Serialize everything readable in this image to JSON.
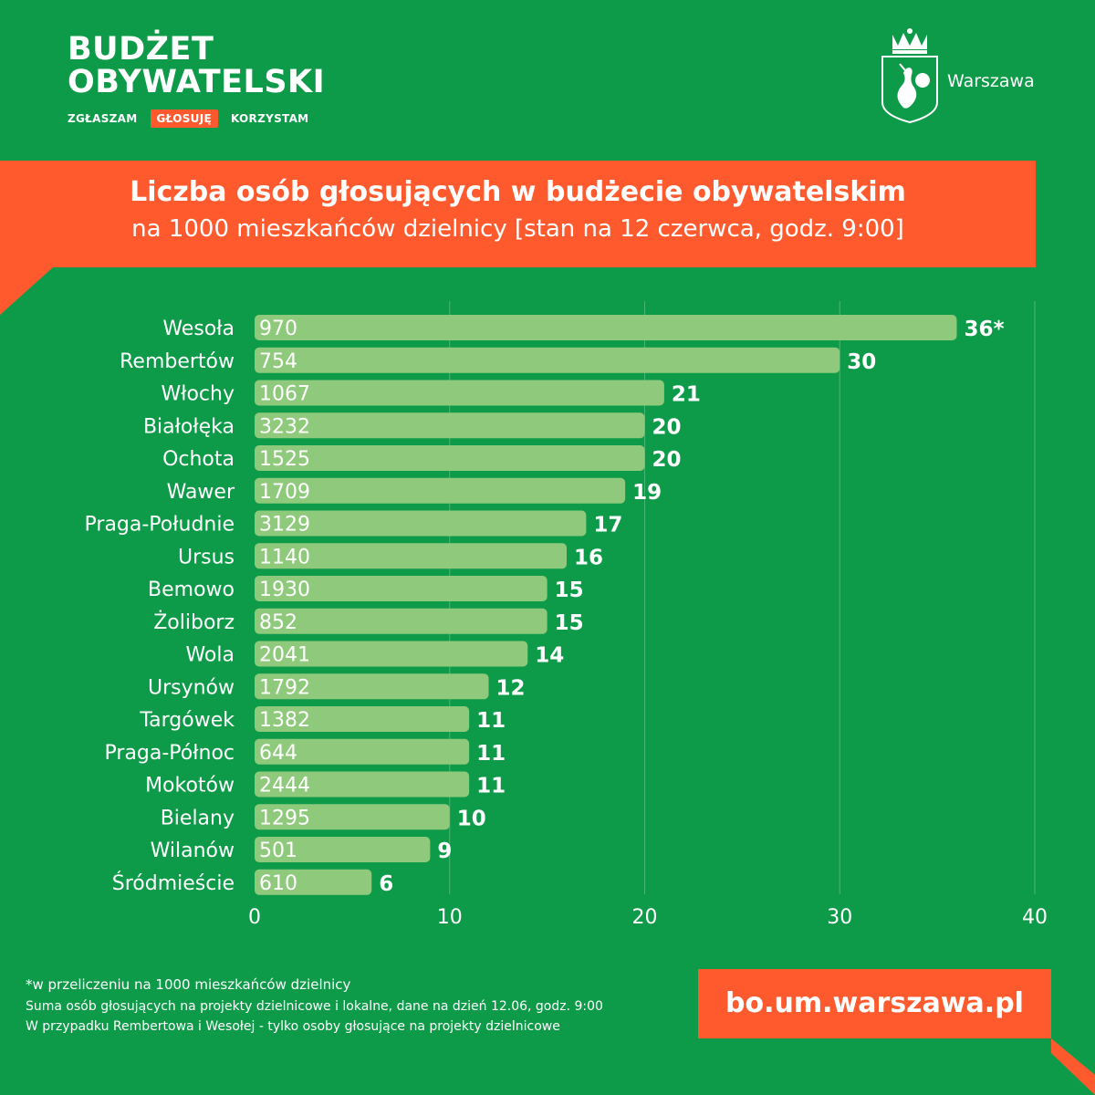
{
  "brand": {
    "title_line1": "BUDŻET",
    "title_line2": "OBYWATELSKI",
    "tags": [
      "ZGŁASZAM",
      "GŁOSUJĘ",
      "KORZYSTAM"
    ]
  },
  "city": {
    "name": "Warszawa"
  },
  "colors": {
    "background": "#0e9b49",
    "accent": "#ff5a2e",
    "bar": "#8fca7c"
  },
  "chart_data": {
    "type": "bar",
    "orientation": "horizontal",
    "title": "Liczba osób głosujących w budżecie obywatelskim",
    "subtitle": "na 1000 mieszkańców dzielnicy [stan na 12 czerwca, godz. 9:00]",
    "categories": [
      "Wesoła",
      "Rembertów",
      "Włochy",
      "Białołęka",
      "Ochota",
      "Wawer",
      "Praga-Południe",
      "Ursus",
      "Bemowo",
      "Żoliborz",
      "Wola",
      "Ursynów",
      "Targówek",
      "Praga-Północ",
      "Mokotów",
      "Bielany",
      "Wilanów",
      "Śródmieście"
    ],
    "values": [
      36,
      30,
      21,
      20,
      20,
      19,
      17,
      16,
      15,
      15,
      14,
      12,
      11,
      11,
      11,
      10,
      9,
      6
    ],
    "value_labels": [
      "36*",
      "30",
      "21",
      "20",
      "20",
      "19",
      "17",
      "16",
      "15",
      "15",
      "14",
      "12",
      "11",
      "11",
      "11",
      "10",
      "9",
      "6"
    ],
    "inner_labels": [
      "970",
      "754",
      "1067",
      "3232",
      "1525",
      "1709",
      "3129",
      "1140",
      "1930",
      "852",
      "2041",
      "1792",
      "1382",
      "644",
      "2444",
      "1295",
      "501",
      "610"
    ],
    "xlim": [
      0,
      40
    ],
    "xticks": [
      0,
      10,
      20,
      30,
      40
    ],
    "grid": true,
    "legend": "none"
  },
  "footnotes": [
    "*w przeliczeniu na 1000 mieszkańców dzielnicy",
    "Suma osób głosujących na projekty dzielnicowe i lokalne, dane na dzień 12.06, godz. 9:00",
    "W przypadku Rembertowa i Wesołej - tylko osoby głosujące na projekty dzielnicowe"
  ],
  "url": "bo.um.warszawa.pl"
}
